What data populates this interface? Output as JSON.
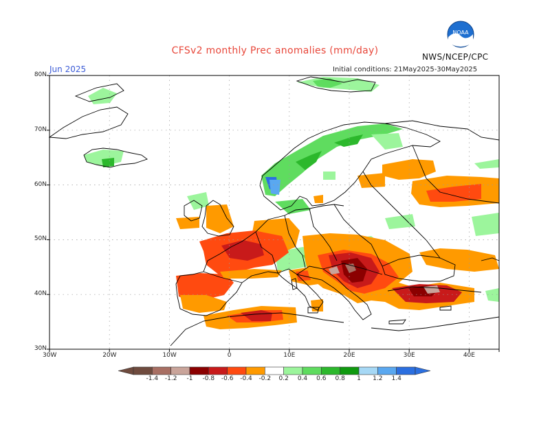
{
  "header": {
    "title": "CFSv2 monthly Prec anomalies (mm/day)",
    "month": "Jun 2025",
    "initial_conditions": "Initial conditions: 21May2025-30May2025",
    "agency": "NWS/NCEP/CPC",
    "logo_text": "NOAA"
  },
  "map": {
    "lon_range": [
      -30,
      45
    ],
    "lat_range": [
      30,
      80
    ],
    "lat_ticks": [
      "80N",
      "70N",
      "60N",
      "50N",
      "40N",
      "30N"
    ],
    "lon_ticks": [
      "30W",
      "20W",
      "10W",
      "0",
      "10E",
      "20E",
      "30E",
      "40E"
    ],
    "grid_style": "dotted"
  },
  "colorbar": {
    "labels": [
      "-1.4",
      "-1.2",
      "-1",
      "-0.8",
      "-0.6",
      "-0.4",
      "-0.2",
      "0.2",
      "0.4",
      "0.6",
      "0.8",
      "1",
      "1.2",
      "1.4"
    ],
    "colors": [
      "#6f4b3e",
      "#a86f63",
      "#c9a49a",
      "#8b0000",
      "#c81a1a",
      "#ff4a10",
      "#ff9a00",
      "#ffffff",
      "#9cf59c",
      "#5fdc5f",
      "#2cb82c",
      "#0f9a0f",
      "#a6d8f5",
      "#5aa8f0",
      "#2b6fe0"
    ]
  },
  "anomalies": {
    "dry_regions": [
      "Northern Italy",
      "Balkans",
      "Southern France",
      "Northern Spain",
      "Turkey",
      "Western Russia"
    ],
    "wet_regions": [
      "Norway",
      "Northern Sweden",
      "Svalbard",
      "Iceland",
      "Central Europe"
    ]
  }
}
